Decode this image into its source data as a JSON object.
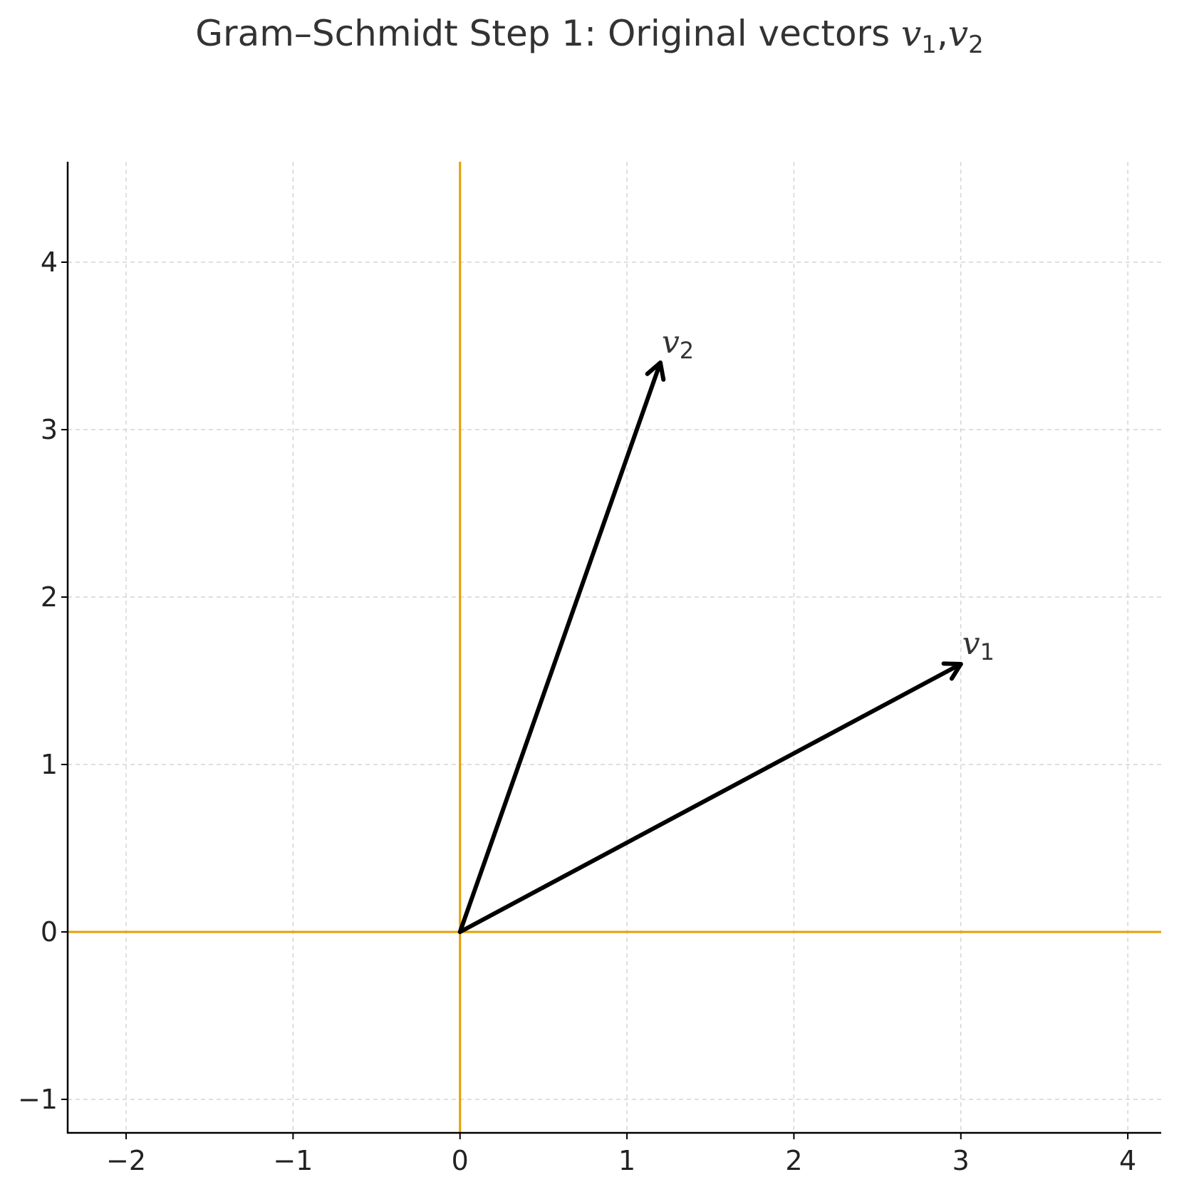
{
  "title": {
    "prefix": "Gram–Schmidt Step 1: Original vectors ",
    "v": "v",
    "sub1": "1",
    "sep": ",",
    "sub2": "2"
  },
  "colors": {
    "axis_lines": "#E69F00",
    "vectors": "#000000",
    "grid": "#cccccc",
    "text": "#333333"
  },
  "chart_data": {
    "type": "vector-plot",
    "title": "Gram–Schmidt Step 1: Original vectors v1, v2",
    "xlabel": "",
    "ylabel": "",
    "xlim": [
      -2.35,
      4.2
    ],
    "ylim": [
      -1.2,
      4.6
    ],
    "xticks": [
      -2,
      -1,
      0,
      1,
      2,
      3,
      4
    ],
    "yticks": [
      -1,
      0,
      1,
      2,
      3,
      4
    ],
    "grid": true,
    "grid_style": "dashed",
    "vectors": [
      {
        "name": "v1",
        "label_base": "v",
        "label_sub": "1",
        "origin": [
          0,
          0
        ],
        "tip": [
          3,
          1.6
        ]
      },
      {
        "name": "v2",
        "label_base": "v",
        "label_sub": "2",
        "origin": [
          0,
          0
        ],
        "tip": [
          1.2,
          3.4
        ]
      }
    ]
  }
}
